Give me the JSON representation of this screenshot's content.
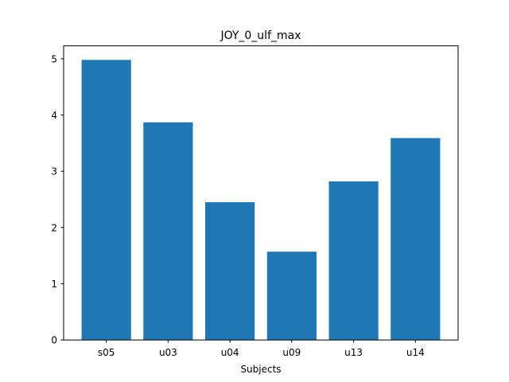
{
  "chart_data": {
    "type": "bar",
    "title": "JOY_0_ulf_max",
    "xlabel": "Subjects",
    "ylabel": "",
    "categories": [
      "s05",
      "u03",
      "u04",
      "u09",
      "u13",
      "u14"
    ],
    "values": [
      4.98,
      3.87,
      2.45,
      1.57,
      2.82,
      3.59
    ],
    "yticks": [
      0,
      1,
      2,
      3,
      4,
      5
    ],
    "ylim": [
      0,
      5.23
    ],
    "grid": false,
    "legend": "none",
    "bar_color": "#1f77b4"
  }
}
